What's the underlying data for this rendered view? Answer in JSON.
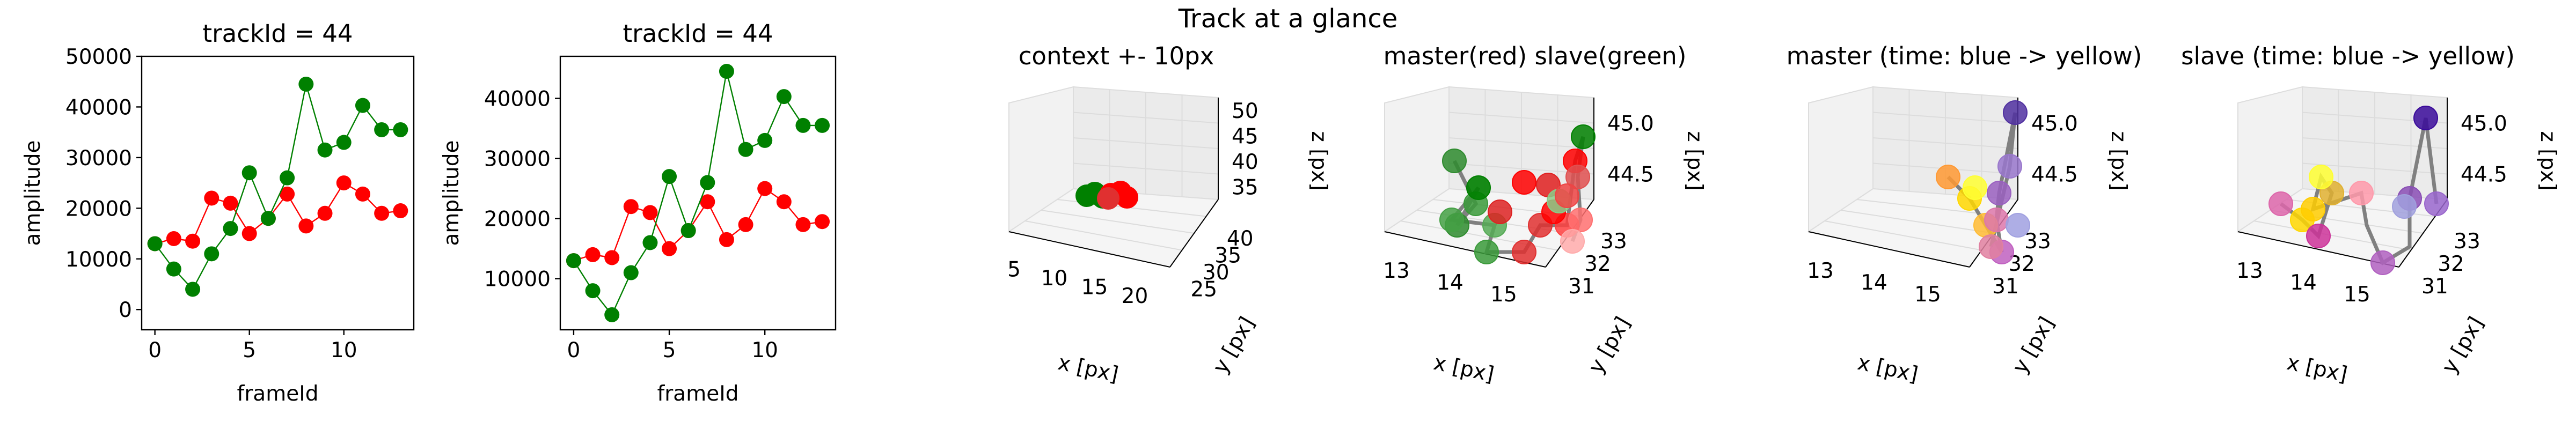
{
  "suptitle": "Track at a glance",
  "chart_data": [
    {
      "type": "line",
      "title": "trackId = 44",
      "xlabel": "frameId",
      "ylabel": "amplitude",
      "xlim": [
        -0.7,
        13.7
      ],
      "ylim": [
        -4000,
        50000
      ],
      "xticks": [
        "0",
        "5",
        "10"
      ],
      "yticks": [
        "0",
        "10000",
        "20000",
        "30000",
        "40000",
        "50000"
      ],
      "series": [
        {
          "color": "#ff0000",
          "x": [
            0,
            1,
            2,
            3,
            4,
            5,
            6,
            7,
            8,
            9,
            10,
            11,
            12,
            13
          ],
          "y": [
            13000,
            14000,
            13500,
            22000,
            21000,
            15000,
            18000,
            22800,
            16500,
            19000,
            25000,
            22800,
            19000,
            19500
          ]
        },
        {
          "color": "#008000",
          "x": [
            0,
            1,
            2,
            3,
            4,
            5,
            6,
            7,
            8,
            9,
            10,
            11,
            12,
            13
          ],
          "y": [
            13000,
            8000,
            4000,
            11000,
            16000,
            27000,
            18000,
            26000,
            44500,
            31500,
            33000,
            40300,
            35500,
            35500
          ]
        }
      ]
    },
    {
      "type": "line",
      "title": "trackId = 44",
      "xlabel": "frameId",
      "ylabel": "amplitude",
      "xlim": [
        -0.7,
        13.7
      ],
      "ylim": [
        1500,
        47000
      ],
      "xticks": [
        "0",
        "5",
        "10"
      ],
      "yticks": [
        "10000",
        "20000",
        "30000",
        "40000"
      ],
      "series": [
        {
          "color": "#ff0000",
          "x": [
            0,
            1,
            2,
            3,
            4,
            5,
            6,
            7,
            8,
            9,
            10,
            11,
            12,
            13
          ],
          "y": [
            13000,
            14000,
            13500,
            22000,
            21000,
            15000,
            18000,
            22800,
            16500,
            19000,
            25000,
            22800,
            19000,
            19500
          ]
        },
        {
          "color": "#008000",
          "x": [
            0,
            1,
            2,
            3,
            4,
            5,
            6,
            7,
            8,
            9,
            10,
            11,
            12,
            13
          ],
          "y": [
            13000,
            8000,
            4000,
            11000,
            16000,
            27000,
            18000,
            26000,
            44500,
            31500,
            33000,
            40300,
            35500,
            35500
          ]
        }
      ]
    },
    {
      "type": "scatter3d",
      "title": "context +- 10px",
      "xlabel": "x [px]",
      "ylabel": "y [px]",
      "zlabel": "z [px]",
      "xticks": [
        "5",
        "10",
        "15",
        "20"
      ],
      "yticks": [
        "25",
        "30",
        "35",
        "40"
      ],
      "zticks": [
        "35",
        "40",
        "45",
        "50"
      ],
      "grid": true
    },
    {
      "type": "scatter3d",
      "title": "master(red) slave(green)",
      "xlabel": "x [px]",
      "ylabel": "y [px]",
      "zlabel": "z [px]",
      "xticks": [
        "13",
        "14",
        "15"
      ],
      "yticks": [
        "31",
        "32",
        "33"
      ],
      "zticks": [
        "44.5",
        "45.0"
      ],
      "grid": true
    },
    {
      "type": "scatter3d",
      "title": "master (time: blue -> yellow)",
      "xlabel": "x [px]",
      "ylabel": "y [px]",
      "zlabel": "z [px]",
      "xticks": [
        "13",
        "14",
        "15"
      ],
      "yticks": [
        "31",
        "32",
        "33"
      ],
      "zticks": [
        "44.5",
        "45.0"
      ],
      "grid": true
    },
    {
      "type": "scatter3d",
      "title": "slave (time: blue -> yellow)",
      "xlabel": "x [px]",
      "ylabel": "y [px]",
      "zlabel": "z [px]",
      "xticks": [
        "13",
        "14",
        "15"
      ],
      "yticks": [
        "31",
        "32",
        "33"
      ],
      "zticks": [
        "44.5",
        "45.0"
      ],
      "grid": true
    }
  ]
}
